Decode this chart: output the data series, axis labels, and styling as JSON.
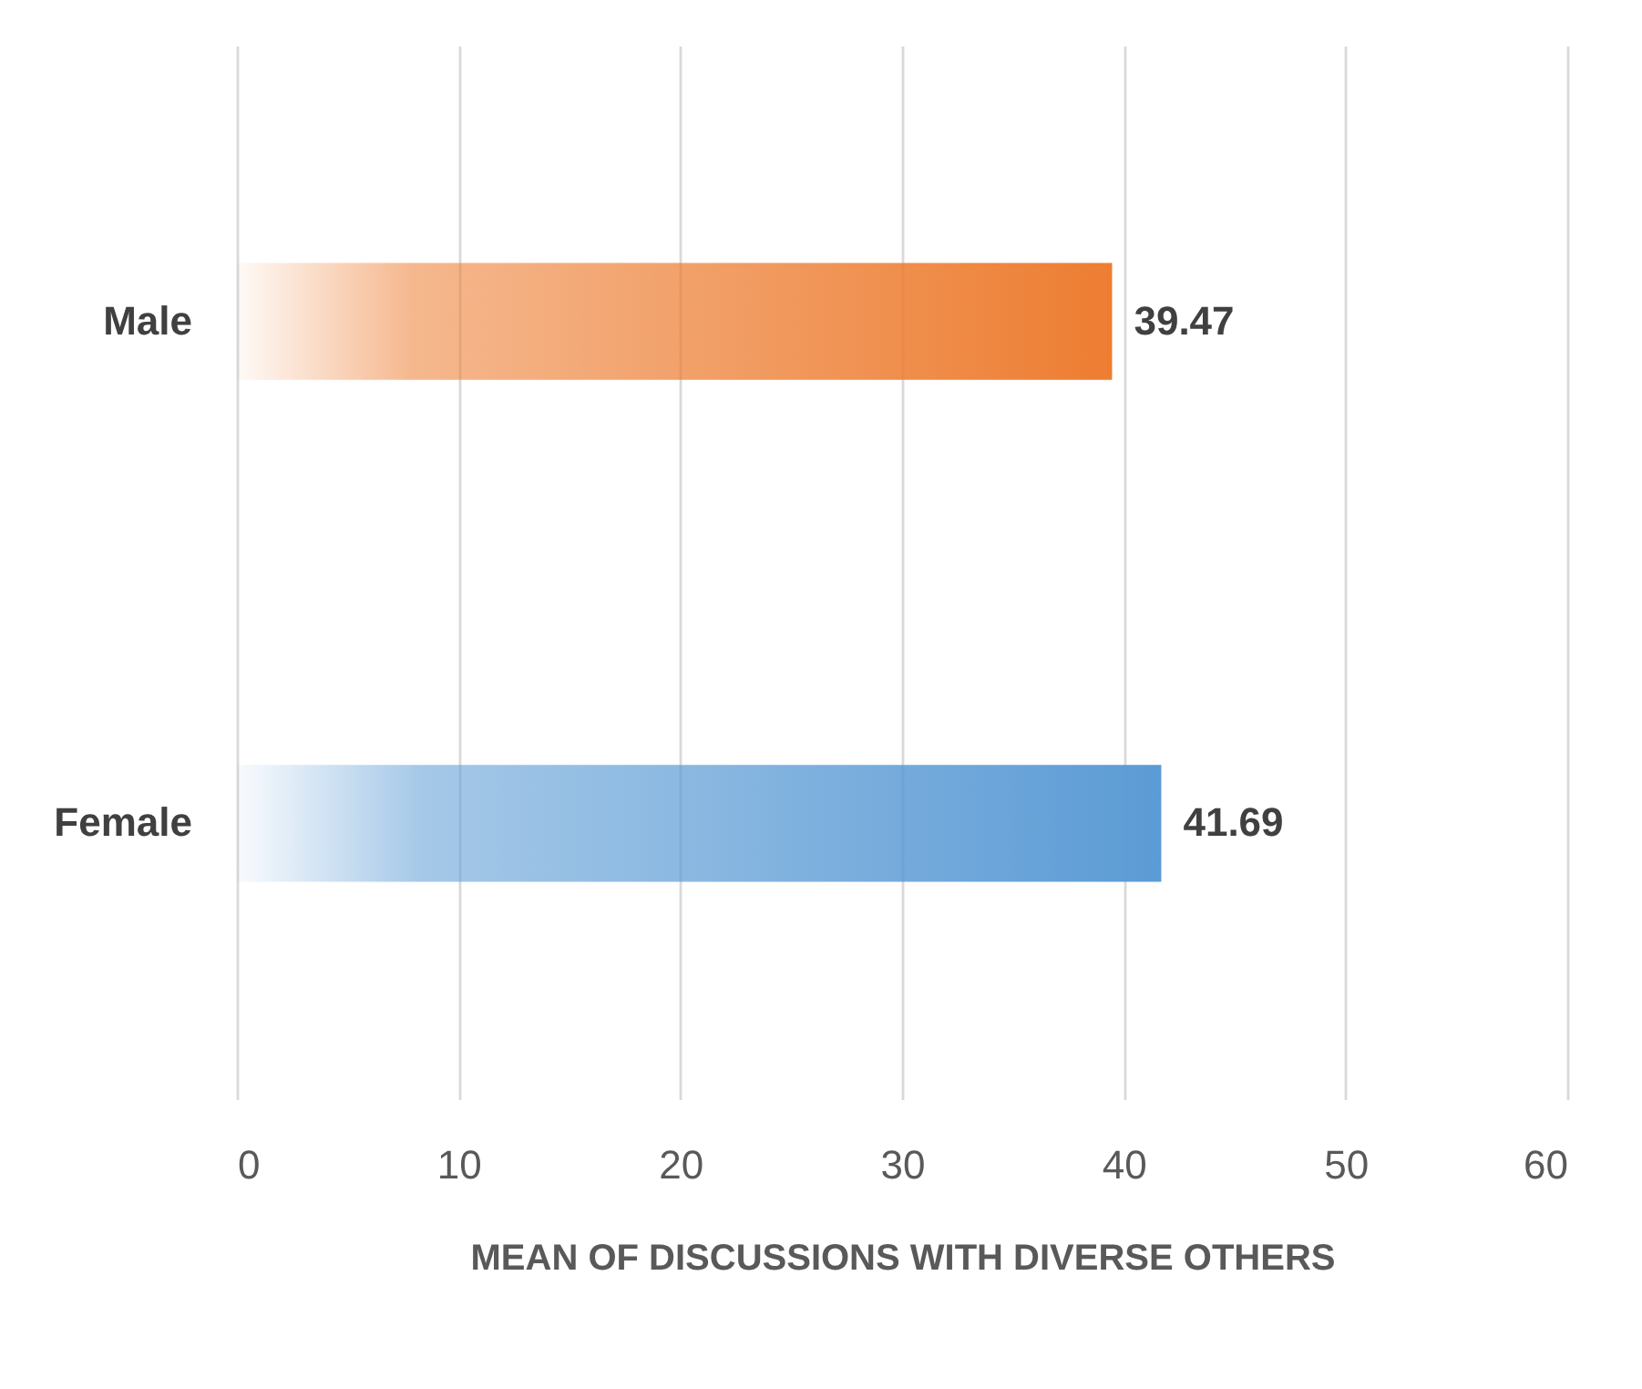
{
  "chart_data": {
    "type": "bar",
    "orientation": "horizontal",
    "categories": [
      "Male",
      "Female"
    ],
    "values": [
      39.47,
      41.69
    ],
    "colors": [
      "#ed7d31",
      "#5b9bd5"
    ],
    "xlabel": "MEAN OF DISCUSSIONS WITH DIVERSE OTHERS",
    "xlim": [
      0,
      60
    ],
    "xticks": [
      0,
      10,
      20,
      30,
      40,
      50,
      60
    ],
    "grid": "x",
    "data_labels": true
  }
}
